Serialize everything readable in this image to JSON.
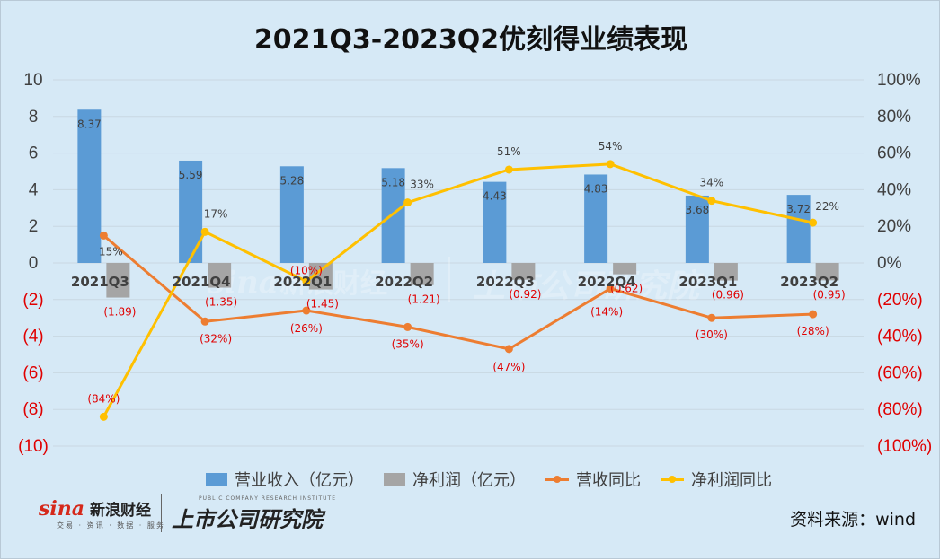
{
  "title": "2021Q3-2023Q2优刻得业绩表现",
  "source": "资料来源：wind",
  "logos": {
    "sina_word": "sina",
    "sina_cn": "新浪财经",
    "sina_sub": "交易 · 资讯 · 数据 · 服务",
    "research_en": "PUBLIC COMPANY RESEARCH INSTITUTE",
    "research_cn": "上市公司研究院"
  },
  "legend": [
    "营业收入（亿元）",
    "净利润（亿元）",
    "营收同比",
    "净利润同比"
  ],
  "colors": {
    "revenue": "#5b9bd5",
    "net_profit": "#a5a5a5",
    "revenue_yoy": "#ed7d31",
    "net_profit_yoy": "#ffc000",
    "negative_text": "#e00000",
    "label_text": "#404040"
  },
  "chart_data": {
    "type": "bar",
    "categories": [
      "2021Q3",
      "2021Q4",
      "2022Q1",
      "2022Q2",
      "2022Q3",
      "2022Q4",
      "2023Q1",
      "2023Q2"
    ],
    "series": [
      {
        "name": "营业收入（亿元）",
        "type": "bar",
        "axis": "left",
        "values": [
          8.37,
          5.59,
          5.28,
          5.18,
          4.43,
          4.83,
          3.68,
          3.72
        ],
        "labels": [
          "8.37",
          "5.59",
          "5.28",
          "5.18",
          "4.43",
          "4.83",
          "3.68",
          "3.72"
        ]
      },
      {
        "name": "净利润（亿元）",
        "type": "bar",
        "axis": "left",
        "values": [
          -1.89,
          -1.35,
          -1.45,
          -1.21,
          -0.92,
          -0.62,
          -0.96,
          -0.95
        ],
        "labels": [
          "(1.89)",
          "(1.35)",
          "(1.45)",
          "(1.21)",
          "(0.92)",
          "(0.62)",
          "(0.96)",
          "(0.95)"
        ]
      },
      {
        "name": "营收同比",
        "type": "line",
        "axis": "right",
        "values": [
          15,
          -32,
          -26,
          -35,
          -47,
          -14,
          -30,
          -28
        ],
        "labels": [
          "15%",
          "(32%)",
          "(26%)",
          "(35%)",
          "(47%)",
          "(14%)",
          "(30%)",
          "(28%)"
        ]
      },
      {
        "name": "净利润同比",
        "type": "line",
        "axis": "right",
        "values": [
          -84,
          17,
          -10,
          33,
          51,
          54,
          34,
          22
        ],
        "labels": [
          "(84%)",
          "17%",
          "(10%)",
          "33%",
          "51%",
          "54%",
          "34%",
          "22%"
        ]
      }
    ],
    "y_left": {
      "range": [
        -10,
        10
      ],
      "ticks": [
        10,
        8,
        6,
        4,
        2,
        0,
        -2,
        -4,
        -6,
        -8,
        -10
      ],
      "tick_labels": [
        "10",
        "8",
        "6",
        "4",
        "2",
        "0",
        "(2)",
        "(4)",
        "(6)",
        "(8)",
        "(10)"
      ]
    },
    "y_right": {
      "range": [
        -100,
        100
      ],
      "ticks": [
        100,
        80,
        60,
        40,
        20,
        0,
        -20,
        -40,
        -60,
        -80,
        -100
      ],
      "tick_labels": [
        "100%",
        "80%",
        "60%",
        "40%",
        "20%",
        "0%",
        "(20%)",
        "(40%)",
        "(60%)",
        "(80%)",
        "(100%)"
      ]
    },
    "grid": true,
    "legend_position": "bottom"
  }
}
